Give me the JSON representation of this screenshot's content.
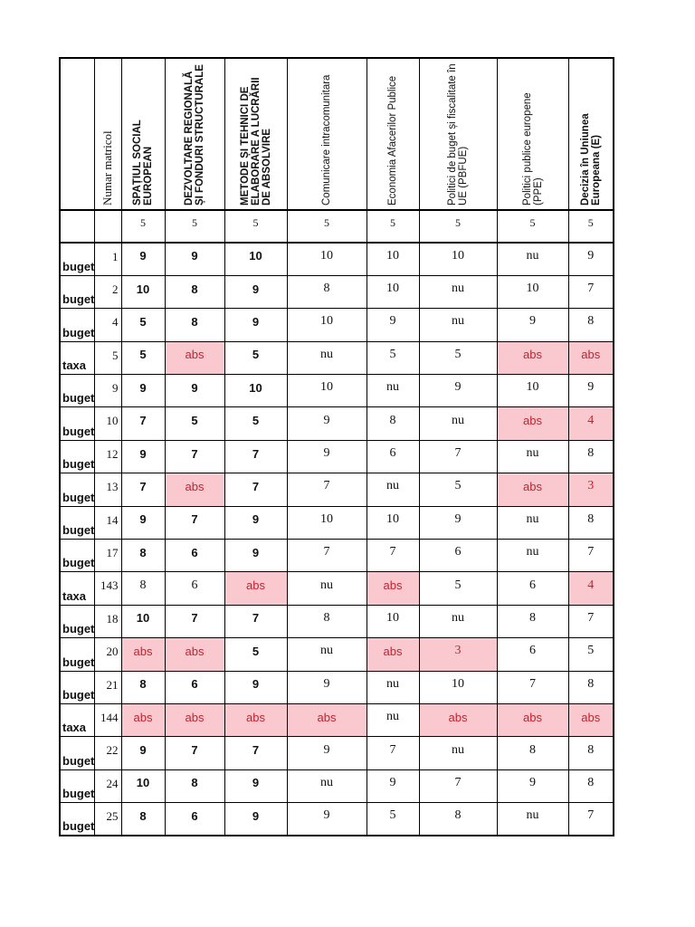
{
  "document": {
    "type": "grade-sheet",
    "colors": {
      "absent_bg": "#f9c9cf",
      "absent_text": "#c2232f"
    },
    "table": {
      "columns": [
        {
          "label": "",
          "style": "empty"
        },
        {
          "label": "Numar matricol",
          "style": "serif"
        },
        {
          "label": "SPAȚIUL SOCIAL EUROPEAN",
          "style": "sans-bold"
        },
        {
          "label": "DEZVOLTARE REGIONALĂ ȘI FONDURI STRUCTURALE",
          "style": "sans-bold"
        },
        {
          "label": "METODE ȘI TEHNICI DE ELABORARE A LUCRĂRII DE ABSOLVIRE",
          "style": "sans-bold"
        },
        {
          "label": "Comunicare intracomunitara",
          "style": "sans"
        },
        {
          "label": "Economia Afacerilor Publice",
          "style": "sans"
        },
        {
          "label": "Politici de buget și fiscalitate în UE (PBFUE)",
          "style": "sans"
        },
        {
          "label": "Politici publice europene (PPE)",
          "style": "sans"
        },
        {
          "label": "Decizia în Uniunea Europeana (E)",
          "style": "sans-bold"
        }
      ],
      "credits": [
        "5",
        "5",
        "5",
        "5",
        "5",
        "5",
        "5",
        "5"
      ],
      "rows": [
        {
          "type": "buget",
          "matricol": "1",
          "grades": [
            "9",
            "9",
            "10",
            "10",
            "10",
            "10",
            "nu",
            "9"
          ],
          "pink": [],
          "plain": []
        },
        {
          "type": "buget",
          "matricol": "2",
          "grades": [
            "10",
            "8",
            "9",
            "8",
            "10",
            "nu",
            "10",
            "7"
          ],
          "pink": [],
          "plain": []
        },
        {
          "type": "buget",
          "matricol": "4",
          "grades": [
            "5",
            "8",
            "9",
            "10",
            "9",
            "nu",
            "9",
            "8"
          ],
          "pink": [],
          "plain": []
        },
        {
          "type": "taxa",
          "matricol": "5",
          "grades": [
            "5",
            "abs",
            "5",
            "nu",
            "5",
            "5",
            "abs",
            "abs"
          ],
          "pink": [
            1,
            6,
            7
          ],
          "plain": []
        },
        {
          "type": "buget",
          "matricol": "9",
          "grades": [
            "9",
            "9",
            "10",
            "10",
            "nu",
            "9",
            "10",
            "9"
          ],
          "pink": [],
          "plain": []
        },
        {
          "type": "buget",
          "matricol": "10",
          "grades": [
            "7",
            "5",
            "5",
            "9",
            "8",
            "nu",
            "abs",
            "4"
          ],
          "pink": [
            6,
            7
          ],
          "plain": []
        },
        {
          "type": "buget",
          "matricol": "12",
          "grades": [
            "9",
            "7",
            "7",
            "9",
            "6",
            "7",
            "nu",
            "8"
          ],
          "pink": [],
          "plain": []
        },
        {
          "type": "buget",
          "matricol": "13",
          "grades": [
            "7",
            "abs",
            "7",
            "7",
            "nu",
            "5",
            "abs",
            "3"
          ],
          "pink": [
            1,
            6,
            7
          ],
          "plain": []
        },
        {
          "type": "buget",
          "matricol": "14",
          "grades": [
            "9",
            "7",
            "9",
            "10",
            "10",
            "9",
            "nu",
            "8"
          ],
          "pink": [],
          "plain": []
        },
        {
          "type": "buget",
          "matricol": "17",
          "grades": [
            "8",
            "6",
            "9",
            "7",
            "7",
            "6",
            "nu",
            "7"
          ],
          "pink": [],
          "plain": []
        },
        {
          "type": "taxa",
          "matricol": "143",
          "grades": [
            "8",
            "6",
            "abs",
            "nu",
            "abs",
            "5",
            "6",
            "4"
          ],
          "pink": [
            2,
            4,
            7
          ],
          "plain": [
            0,
            1
          ]
        },
        {
          "type": "buget",
          "matricol": "18",
          "grades": [
            "10",
            "7",
            "7",
            "8",
            "10",
            "nu",
            "8",
            "7"
          ],
          "pink": [],
          "plain": []
        },
        {
          "type": "buget",
          "matricol": "20",
          "grades": [
            "abs",
            "abs",
            "5",
            "nu",
            "abs",
            "3",
            "6",
            "5"
          ],
          "pink": [
            0,
            1,
            4,
            5
          ],
          "plain": []
        },
        {
          "type": "buget",
          "matricol": "21",
          "grades": [
            "8",
            "6",
            "9",
            "9",
            "nu",
            "10",
            "7",
            "8"
          ],
          "pink": [],
          "plain": []
        },
        {
          "type": "taxa",
          "matricol": "144",
          "grades": [
            "abs",
            "abs",
            "abs",
            "abs",
            "nu",
            "abs",
            "abs",
            "abs"
          ],
          "pink": [
            0,
            1,
            2,
            3,
            5,
            6,
            7
          ],
          "plain": []
        },
        {
          "type": "buget",
          "matricol": "22",
          "grades": [
            "9",
            "7",
            "7",
            "9",
            "7",
            "nu",
            "8",
            "8"
          ],
          "pink": [],
          "plain": []
        },
        {
          "type": "buget",
          "matricol": "24",
          "grades": [
            "10",
            "8",
            "9",
            "nu",
            "9",
            "7",
            "9",
            "8"
          ],
          "pink": [],
          "plain": []
        },
        {
          "type": "buget",
          "matricol": "25",
          "grades": [
            "8",
            "6",
            "9",
            "9",
            "5",
            "8",
            "nu",
            "7"
          ],
          "pink": [],
          "plain": []
        }
      ]
    }
  }
}
